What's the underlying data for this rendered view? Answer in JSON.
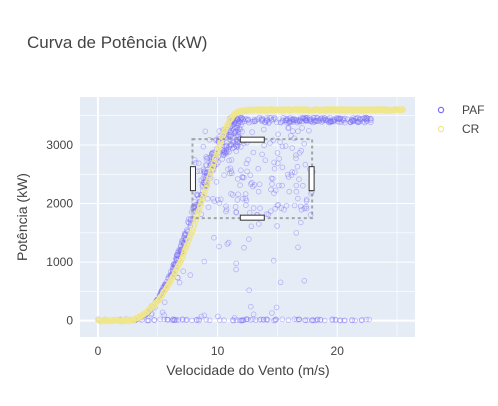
{
  "chart_data": {
    "type": "scatter",
    "title": "Curva de Potência (kW)",
    "xlabel": "Velocidade do Vento (m/s)",
    "ylabel": "Potência (kW)",
    "xlim": [
      -1.5,
      26.5
    ],
    "ylim": [
      -280,
      3820
    ],
    "x_ticks": [
      0,
      10,
      20
    ],
    "y_ticks": [
      0,
      1000,
      2000,
      3000
    ],
    "grid": true,
    "legend_position": "top-right",
    "selection_box": {
      "x0": 7.9,
      "x1": 17.9,
      "y0": 1750,
      "y1": 3100
    },
    "series": [
      {
        "name": "PAF",
        "color": "#7b6cf6",
        "marker": "open-circle",
        "description_points": "measured turbine output, dense scatter",
        "envelope": [
          [
            0,
            0
          ],
          [
            3,
            0
          ],
          [
            4,
            120
          ],
          [
            5,
            380
          ],
          [
            6,
            800
          ],
          [
            7,
            1350
          ],
          [
            8,
            2000
          ],
          [
            9,
            2650
          ],
          [
            10,
            3150
          ],
          [
            11,
            3420
          ],
          [
            12,
            3460
          ],
          [
            25,
            3460
          ]
        ]
      },
      {
        "name": "CR",
        "color": "#f0e68c",
        "marker": "open-circle",
        "curve": [
          [
            0,
            0
          ],
          [
            2.5,
            0
          ],
          [
            3,
            10
          ],
          [
            3.5,
            60
          ],
          [
            4,
            130
          ],
          [
            5,
            330
          ],
          [
            6,
            640
          ],
          [
            7,
            1050
          ],
          [
            8,
            1600
          ],
          [
            9,
            2250
          ],
          [
            10,
            2900
          ],
          [
            10.5,
            3200
          ],
          [
            11,
            3420
          ],
          [
            11.5,
            3540
          ],
          [
            12,
            3580
          ],
          [
            13,
            3600
          ],
          [
            25.5,
            3600
          ]
        ]
      }
    ]
  }
}
